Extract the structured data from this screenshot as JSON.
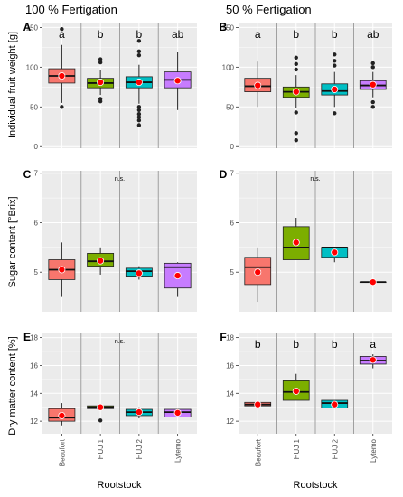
{
  "header": {
    "col_left": "100 % Fertigation",
    "col_right": "50 % Fertigation"
  },
  "axis": {
    "ylabel_row1": "Individual fruit weight [g]",
    "ylabel_row2": "Sugar content [°Brix]",
    "ylabel_row3": "Dry matter content [%]",
    "xlabel": "Rootstock"
  },
  "colors": {
    "Beaufort": "#f8766d",
    "HUJ 1": "#7cae00",
    "HUJ 2": "#00bfc4",
    "Lytemo": "#c77cff",
    "mean_point": "#ff0000",
    "panel_bg": "#ebebeb",
    "grid": "#ffffff",
    "separator": "#a0a0a0"
  },
  "chart_data": [
    {
      "panel": "A",
      "type": "box",
      "ylim": [
        -2,
        155
      ],
      "yticks": [
        0,
        50,
        100,
        150
      ],
      "categories": [
        "Beaufort",
        "HUJ 1",
        "HUJ 2",
        "Lytemo"
      ],
      "boxes": [
        {
          "q1": 80,
          "median": 89,
          "q3": 98,
          "whisker_low": 55,
          "whisker_high": 128,
          "mean": 89,
          "outliers": [
            50,
            148
          ],
          "sig": "a"
        },
        {
          "q1": 74,
          "median": 80,
          "q3": 86,
          "whisker_low": 65,
          "whisker_high": 96,
          "mean": 81,
          "outliers": [
            57,
            60,
            106,
            110
          ],
          "sig": "b"
        },
        {
          "q1": 74,
          "median": 81,
          "q3": 88,
          "whisker_low": 54,
          "whisker_high": 103,
          "mean": 81,
          "outliers": [
            27,
            33,
            37,
            41,
            46,
            50,
            115,
            120,
            133
          ],
          "sig": "b"
        },
        {
          "q1": 74,
          "median": 84,
          "q3": 94,
          "whisker_low": 46,
          "whisker_high": 119,
          "mean": 83,
          "outliers": [],
          "sig": "ab"
        }
      ]
    },
    {
      "panel": "B",
      "type": "box",
      "ylim": [
        -2,
        155
      ],
      "yticks": [
        0,
        50,
        100,
        150
      ],
      "categories": [
        "Beaufort",
        "HUJ 1",
        "HUJ 2",
        "Lytemo"
      ],
      "boxes": [
        {
          "q1": 69,
          "median": 76,
          "q3": 86,
          "whisker_low": 50,
          "whisker_high": 107,
          "mean": 77,
          "outliers": [],
          "sig": "a"
        },
        {
          "q1": 62,
          "median": 69,
          "q3": 75,
          "whisker_low": 49,
          "whisker_high": 90,
          "mean": 69,
          "outliers": [
            8,
            17,
            43,
            97,
            104,
            112
          ],
          "sig": "b"
        },
        {
          "q1": 65,
          "median": 70,
          "q3": 79,
          "whisker_low": 50,
          "whisker_high": 94,
          "mean": 72,
          "outliers": [
            42,
            102,
            108,
            116
          ],
          "sig": "b"
        },
        {
          "q1": 72,
          "median": 77,
          "q3": 83,
          "whisker_low": 62,
          "whisker_high": 94,
          "mean": 78,
          "outliers": [
            50,
            56,
            100,
            105
          ],
          "sig": "ab"
        }
      ]
    },
    {
      "panel": "C",
      "type": "box",
      "ylim": [
        4.2,
        7.05
      ],
      "yticks": [
        5,
        6,
        7
      ],
      "categories": [
        "Beaufort",
        "HUJ 1",
        "HUJ 2",
        "Lytemo"
      ],
      "annotation": "n.s.",
      "boxes": [
        {
          "q1": 4.85,
          "median": 5.05,
          "q3": 5.25,
          "whisker_low": 4.5,
          "whisker_high": 5.6,
          "mean": 5.05,
          "outliers": []
        },
        {
          "q1": 5.12,
          "median": 5.22,
          "q3": 5.38,
          "whisker_low": 4.95,
          "whisker_high": 5.5,
          "mean": 5.23,
          "outliers": []
        },
        {
          "q1": 4.92,
          "median": 5.02,
          "q3": 5.08,
          "whisker_low": 4.85,
          "whisker_high": 5.12,
          "mean": 4.98,
          "outliers": []
        },
        {
          "q1": 4.68,
          "median": 5.1,
          "q3": 5.18,
          "whisker_low": 4.5,
          "whisker_high": 5.2,
          "mean": 4.93,
          "outliers": []
        }
      ]
    },
    {
      "panel": "D",
      "type": "box",
      "ylim": [
        4.2,
        7.05
      ],
      "yticks": [
        5,
        6,
        7
      ],
      "categories": [
        "Beaufort",
        "HUJ 1",
        "HUJ 2",
        "Lytemo"
      ],
      "annotation": "n.s.",
      "boxes": [
        {
          "q1": 4.75,
          "median": 5.1,
          "q3": 5.3,
          "whisker_low": 4.4,
          "whisker_high": 5.5,
          "mean": 5.0,
          "outliers": []
        },
        {
          "q1": 5.25,
          "median": 5.5,
          "q3": 5.92,
          "whisker_low": 5.25,
          "whisker_high": 6.1,
          "mean": 5.6,
          "outliers": []
        },
        {
          "q1": 5.3,
          "median": 5.5,
          "q3": 5.5,
          "whisker_low": 5.2,
          "whisker_high": 5.5,
          "mean": 5.4,
          "outliers": []
        },
        {
          "q1": 4.8,
          "median": 4.8,
          "q3": 4.8,
          "whisker_low": 4.8,
          "whisker_high": 4.8,
          "mean": 4.8,
          "outliers": []
        }
      ]
    },
    {
      "panel": "E",
      "type": "box",
      "ylim": [
        11.1,
        18.3
      ],
      "yticks": [
        12,
        14,
        16,
        18
      ],
      "categories": [
        "Beaufort",
        "HUJ 1",
        "HUJ 2",
        "Lytemo"
      ],
      "annotation": "n.s.",
      "boxes": [
        {
          "q1": 12.0,
          "median": 12.25,
          "q3": 12.9,
          "whisker_low": 11.7,
          "whisker_high": 13.3,
          "mean": 12.4,
          "outliers": []
        },
        {
          "q1": 12.9,
          "median": 13.0,
          "q3": 13.1,
          "whisker_low": 12.85,
          "whisker_high": 13.15,
          "mean": 13.0,
          "outliers": [
            12.05
          ]
        },
        {
          "q1": 12.4,
          "median": 12.65,
          "q3": 12.85,
          "whisker_low": 12.2,
          "whisker_high": 13.0,
          "mean": 12.65,
          "outliers": []
        },
        {
          "q1": 12.3,
          "median": 12.65,
          "q3": 12.85,
          "whisker_low": 12.3,
          "whisker_high": 12.85,
          "mean": 12.6,
          "outliers": []
        }
      ]
    },
    {
      "panel": "F",
      "type": "box",
      "ylim": [
        11.1,
        18.3
      ],
      "yticks": [
        12,
        14,
        16,
        18
      ],
      "categories": [
        "Beaufort",
        "HUJ 1",
        "HUJ 2",
        "Lytemo"
      ],
      "xticklabels": [
        "Beaufort",
        "HUJ 1",
        "HUJ 2",
        "Lytemo"
      ],
      "boxes": [
        {
          "q1": 13.1,
          "median": 13.2,
          "q3": 13.35,
          "whisker_low": 13.0,
          "whisker_high": 13.35,
          "mean": 13.2,
          "outliers": [],
          "sig": "b"
        },
        {
          "q1": 13.5,
          "median": 14.1,
          "q3": 14.9,
          "whisker_low": 13.5,
          "whisker_high": 15.4,
          "mean": 14.15,
          "outliers": [],
          "sig": "b"
        },
        {
          "q1": 12.95,
          "median": 13.3,
          "q3": 13.5,
          "whisker_low": 12.95,
          "whisker_high": 13.5,
          "mean": 13.2,
          "outliers": [],
          "sig": "b"
        },
        {
          "q1": 16.1,
          "median": 16.35,
          "q3": 16.65,
          "whisker_low": 15.8,
          "whisker_high": 16.8,
          "mean": 16.4,
          "outliers": [],
          "sig": "a"
        }
      ]
    }
  ]
}
